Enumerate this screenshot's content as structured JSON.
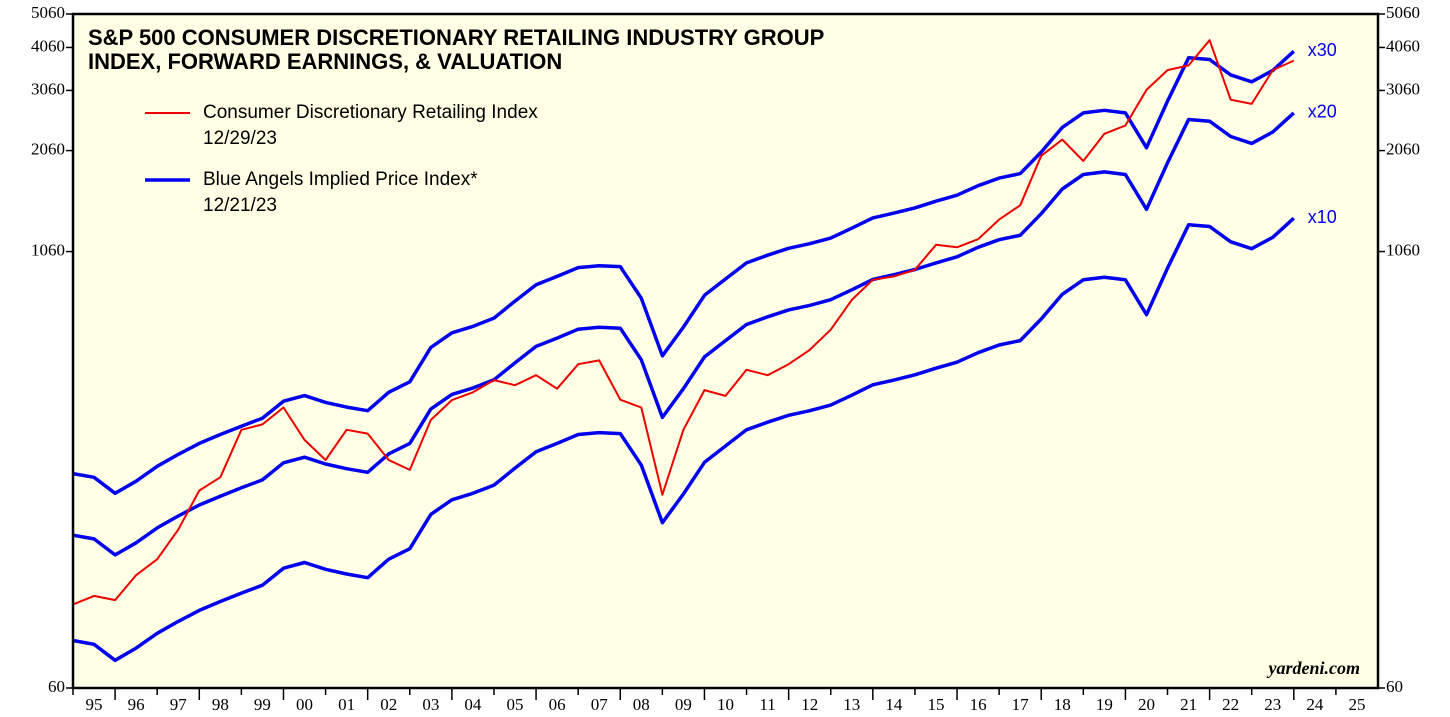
{
  "chart_data": {
    "type": "line",
    "title_lines": [
      "S&P 500 CONSUMER DISCRETIONARY RETAILING INDUSTRY GROUP",
      "INDEX, FORWARD EARNINGS, & VALUATION"
    ],
    "legend": [
      {
        "name": "Consumer Discretionary Retailing Index",
        "date": "12/29/23",
        "color": "#ee0000"
      },
      {
        "name": "Blue Angels Implied Price Index*",
        "date": "12/21/23",
        "color": "#0000ee"
      }
    ],
    "source": "yardeni.com",
    "log_scale": true,
    "ylim": [
      60,
      5060
    ],
    "yticks": [
      60,
      1060,
      2060,
      3060,
      4060,
      5060
    ],
    "xlim": [
      1995,
      2026
    ],
    "xticks": [
      {
        "value": 1995,
        "label": "95"
      },
      {
        "value": 1996,
        "label": "96"
      },
      {
        "value": 1997,
        "label": "97"
      },
      {
        "value": 1998,
        "label": "98"
      },
      {
        "value": 1999,
        "label": "99"
      },
      {
        "value": 2000,
        "label": "00"
      },
      {
        "value": 2001,
        "label": "01"
      },
      {
        "value": 2002,
        "label": "02"
      },
      {
        "value": 2003,
        "label": "03"
      },
      {
        "value": 2004,
        "label": "04"
      },
      {
        "value": 2005,
        "label": "05"
      },
      {
        "value": 2006,
        "label": "06"
      },
      {
        "value": 2007,
        "label": "07"
      },
      {
        "value": 2008,
        "label": "08"
      },
      {
        "value": 2009,
        "label": "09"
      },
      {
        "value": 2010,
        "label": "10"
      },
      {
        "value": 2011,
        "label": "11"
      },
      {
        "value": 2012,
        "label": "12"
      },
      {
        "value": 2013,
        "label": "13"
      },
      {
        "value": 2014,
        "label": "14"
      },
      {
        "value": 2015,
        "label": "15"
      },
      {
        "value": 2016,
        "label": "16"
      },
      {
        "value": 2017,
        "label": "17"
      },
      {
        "value": 2018,
        "label": "18"
      },
      {
        "value": 2019,
        "label": "19"
      },
      {
        "value": 2020,
        "label": "20"
      },
      {
        "value": 2021,
        "label": "21"
      },
      {
        "value": 2022,
        "label": "22"
      },
      {
        "value": 2023,
        "label": "23"
      },
      {
        "value": 2024,
        "label": "24"
      },
      {
        "value": 2025,
        "label": "25"
      }
    ],
    "x": [
      1995.0,
      1995.5,
      1996.0,
      1996.5,
      1997.0,
      1997.5,
      1998.0,
      1998.5,
      1999.0,
      1999.5,
      2000.0,
      2000.5,
      2001.0,
      2001.5,
      2002.0,
      2002.5,
      2003.0,
      2003.5,
      2004.0,
      2004.5,
      2005.0,
      2005.5,
      2006.0,
      2006.5,
      2007.0,
      2007.5,
      2008.0,
      2008.5,
      2009.0,
      2009.5,
      2010.0,
      2010.5,
      2011.0,
      2011.5,
      2012.0,
      2012.5,
      2013.0,
      2013.5,
      2014.0,
      2014.5,
      2015.0,
      2015.5,
      2016.0,
      2016.5,
      2017.0,
      2017.5,
      2018.0,
      2018.5,
      2019.0,
      2019.5,
      2020.0,
      2020.5,
      2021.0,
      2021.5,
      2022.0,
      2022.5,
      2023.0,
      2023.5,
      2024.0
    ],
    "series": [
      {
        "color": "#0000ee",
        "label": "x30",
        "values": [
          246,
          240,
          216,
          234,
          258,
          279,
          300,
          318,
          336,
          354,
          396,
          411,
          393,
          381,
          372,
          420,
          450,
          564,
          621,
          648,
          684,
          765,
          852,
          900,
          954,
          966,
          960,
          780,
          534,
          645,
          795,
          885,
          984,
          1035,
          1083,
          1116,
          1158,
          1236,
          1323,
          1365,
          1413,
          1476,
          1536,
          1635,
          1719,
          1770,
          2040,
          2400,
          2640,
          2685,
          2640,
          2100,
          2850,
          3792,
          3750,
          3390,
          3240,
          3492,
          3960
        ]
      },
      {
        "color": "#0000ee",
        "label": "x20",
        "values": [
          164,
          160,
          144,
          156,
          172,
          186,
          200,
          212,
          224,
          236,
          264,
          274,
          262,
          254,
          248,
          280,
          300,
          376,
          414,
          432,
          456,
          510,
          568,
          600,
          636,
          644,
          640,
          520,
          356,
          430,
          530,
          590,
          656,
          690,
          722,
          744,
          772,
          824,
          882,
          910,
          942,
          984,
          1024,
          1090,
          1146,
          1180,
          1360,
          1600,
          1760,
          1790,
          1760,
          1400,
          1900,
          2528,
          2500,
          2260,
          2160,
          2328,
          2640
        ]
      },
      {
        "color": "#0000ee",
        "label": "x10",
        "values": [
          82,
          80,
          72,
          78,
          86,
          93,
          100,
          106,
          112,
          118,
          132,
          137,
          131,
          127,
          124,
          140,
          150,
          188,
          207,
          216,
          228,
          255,
          284,
          300,
          318,
          322,
          320,
          260,
          178,
          215,
          265,
          295,
          328,
          345,
          361,
          372,
          386,
          412,
          441,
          455,
          471,
          492,
          512,
          545,
          573,
          590,
          680,
          800,
          880,
          895,
          880,
          700,
          950,
          1264,
          1250,
          1130,
          1080,
          1164,
          1320
        ]
      },
      {
        "color": "#ee0000",
        "values": [
          104,
          110,
          107,
          126,
          140,
          170,
          220,
          240,
          328,
          340,
          380,
          307,
          269,
          328,
          320,
          269,
          252,
          350,
          399,
          420,
          455,
          440,
          470,
          430,
          505,
          518,
          400,
          380,
          214,
          328,
          426,
          410,
          487,
          470,
          505,
          555,
          634,
          771,
          880,
          900,
          940,
          1108,
          1090,
          1150,
          1308,
          1437,
          1991,
          2215,
          1924,
          2300,
          2430,
          3070,
          3498,
          3609,
          4260,
          2880,
          2800,
          3498,
          3724
        ]
      }
    ]
  }
}
